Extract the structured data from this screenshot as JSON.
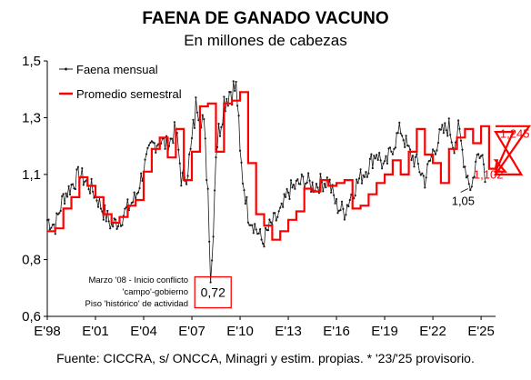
{
  "chart_data": {
    "type": "line",
    "title": "FAENA DE GANADO VACUNO",
    "subtitle": "En millones de cabezas",
    "xlabel": "",
    "ylabel": "",
    "ylim": [
      0.6,
      1.5
    ],
    "xlim": [
      "1998-01",
      "2025-12"
    ],
    "y_ticks": [
      "0,6",
      "0,8",
      "1,1",
      "1,3",
      "1,5"
    ],
    "y_tick_values": [
      0.6,
      0.8,
      1.1,
      1.3,
      1.5
    ],
    "x_ticks": [
      "E'98",
      "E'01",
      "E'04",
      "E'07",
      "E'10",
      "E'13",
      "E'16",
      "E'19",
      "E'22",
      "E'25"
    ],
    "x_tick_values": [
      1998,
      2001,
      2004,
      2007,
      2010,
      2013,
      2016,
      2019,
      2022,
      2025
    ],
    "grid": false,
    "legend_position": "top-left",
    "colors": {
      "monthly": "#1a1a1a",
      "semester": "#ff0000",
      "callout_border": "#ff0000"
    },
    "series": [
      {
        "name": "Faena mensual",
        "style": "line-with-markers",
        "anchors": [
          [
            1998.0,
            0.94
          ],
          [
            1998.5,
            0.92
          ],
          [
            1999.0,
            1.02
          ],
          [
            1999.5,
            1.06
          ],
          [
            2000.0,
            1.1
          ],
          [
            2000.5,
            1.07
          ],
          [
            2001.0,
            1.03
          ],
          [
            2001.5,
            0.97
          ],
          [
            2002.0,
            0.92
          ],
          [
            2002.5,
            0.94
          ],
          [
            2003.0,
            0.98
          ],
          [
            2003.5,
            1.02
          ],
          [
            2004.0,
            1.12
          ],
          [
            2004.5,
            1.2
          ],
          [
            2005.0,
            1.22
          ],
          [
            2005.5,
            1.2
          ],
          [
            2006.0,
            1.26
          ],
          [
            2006.4,
            1.07
          ],
          [
            2006.9,
            1.16
          ],
          [
            2007.3,
            1.36
          ],
          [
            2007.7,
            1.3
          ],
          [
            2008.0,
            1.05
          ],
          [
            2008.2,
            0.72
          ],
          [
            2008.5,
            1.19
          ],
          [
            2009.0,
            1.36
          ],
          [
            2009.4,
            1.4
          ],
          [
            2009.8,
            1.4
          ],
          [
            2010.0,
            1.16
          ],
          [
            2010.5,
            0.96
          ],
          [
            2011.0,
            0.91
          ],
          [
            2011.4,
            0.86
          ],
          [
            2011.8,
            0.91
          ],
          [
            2012.2,
            0.94
          ],
          [
            2012.6,
            0.97
          ],
          [
            2013.0,
            1.04
          ],
          [
            2013.5,
            1.06
          ],
          [
            2014.0,
            1.08
          ],
          [
            2014.5,
            1.06
          ],
          [
            2015.0,
            1.07
          ],
          [
            2015.5,
            1.08
          ],
          [
            2016.0,
            0.99
          ],
          [
            2016.5,
            0.97
          ],
          [
            2017.0,
            1.04
          ],
          [
            2017.5,
            1.09
          ],
          [
            2018.0,
            1.13
          ],
          [
            2018.5,
            1.18
          ],
          [
            2019.0,
            1.12
          ],
          [
            2019.5,
            1.2
          ],
          [
            2020.0,
            1.26
          ],
          [
            2020.5,
            1.18
          ],
          [
            2021.0,
            1.14
          ],
          [
            2021.5,
            1.08
          ],
          [
            2022.0,
            1.18
          ],
          [
            2022.5,
            1.24
          ],
          [
            2023.0,
            1.27
          ],
          [
            2023.3,
            1.2
          ],
          [
            2023.6,
            1.26
          ],
          [
            2024.0,
            1.13
          ],
          [
            2024.4,
            1.05
          ],
          [
            2024.7,
            1.15
          ],
          [
            2025.0,
            1.2
          ],
          [
            2025.3,
            1.09
          ]
        ],
        "min_2008": 0.72
      },
      {
        "name": "Promedio semestral",
        "style": "step",
        "start": 1998.0,
        "step": 0.5,
        "values": [
          0.9,
          0.91,
          0.98,
          1.02,
          1.09,
          1.06,
          1.02,
          0.96,
          0.93,
          0.95,
          0.99,
          1.01,
          1.11,
          1.19,
          1.23,
          1.16,
          1.26,
          1.08,
          1.18,
          1.34,
          1.35,
          1.18,
          1.35,
          1.36,
          1.39,
          1.14,
          0.96,
          0.92,
          0.87,
          0.9,
          0.94,
          0.97,
          1.05,
          1.04,
          1.08,
          1.06,
          1.07,
          1.08,
          0.98,
          0.99,
          1.03,
          1.07,
          1.1,
          1.15,
          1.1,
          1.18,
          1.26,
          1.17,
          1.14,
          1.07,
          1.19,
          1.23,
          1.26,
          1.21,
          1.27,
          1.12,
          1.15,
          1.11,
          1.25,
          1.1,
          1.27
        ]
      }
    ],
    "annotations": [
      {
        "label": "1,245",
        "x": 2025.5,
        "y": 1.245,
        "color": "#ff0000"
      },
      {
        "label": "1,102",
        "x": 2025.5,
        "y": 1.102,
        "color": "#ff0000"
      },
      {
        "label": "1,05",
        "x": 2024.3,
        "y": 1.05,
        "color": "#000000"
      },
      {
        "label": "0,72",
        "x": 2008.2,
        "y": 0.72,
        "color": "#000000"
      }
    ],
    "callout_text": [
      "Marzo '08 - Inicio conflicto",
      "'campo'-gobierno",
      "Piso 'histórico' de actividad"
    ]
  },
  "source": "Fuente: CICCRA, s/ ONCCA, Minagri y estim. propias. * '23/'25 provisorio."
}
